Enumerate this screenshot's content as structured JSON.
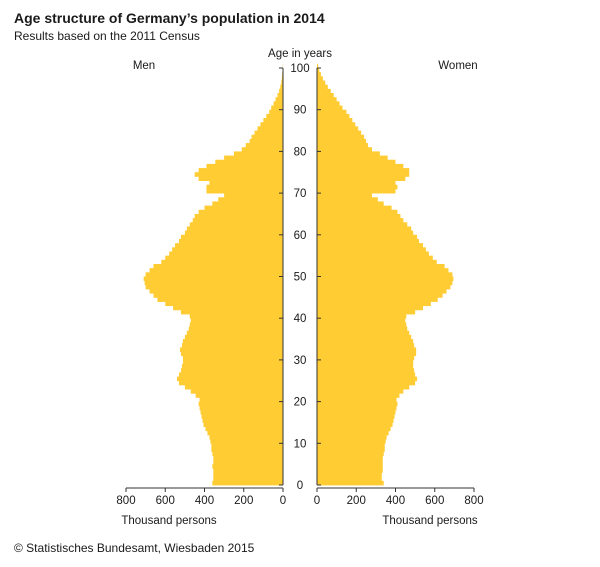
{
  "header": {
    "title": "Age structure of Germany’s population in 2014",
    "subtitle": "Results based on the 2011 Census"
  },
  "footer": {
    "source": "© Statistisches Bundesamt, Wiesbaden 2015"
  },
  "chart_data": {
    "type": "bar",
    "orientation": "horizontal-population-pyramid",
    "center_axis_label": "Age in years",
    "left_label": "Men",
    "right_label": "Women",
    "left_axis_label": "Thousand persons",
    "right_axis_label": "Thousand persons",
    "age_ticks": [
      0,
      10,
      20,
      30,
      40,
      50,
      60,
      70,
      80,
      90,
      100
    ],
    "value_ticks": [
      800,
      600,
      400,
      200,
      0
    ],
    "value_ticks_right": [
      0,
      200,
      400,
      600,
      800
    ],
    "xlim": [
      0,
      800
    ],
    "ylim": [
      0,
      100
    ],
    "grid": false,
    "bar_color": "#FFCC33",
    "ages": [
      0,
      1,
      2,
      3,
      4,
      5,
      6,
      7,
      8,
      9,
      10,
      11,
      12,
      13,
      14,
      15,
      16,
      17,
      18,
      19,
      20,
      21,
      22,
      23,
      24,
      25,
      26,
      27,
      28,
      29,
      30,
      31,
      32,
      33,
      34,
      35,
      36,
      37,
      38,
      39,
      40,
      41,
      42,
      43,
      44,
      45,
      46,
      47,
      48,
      49,
      50,
      51,
      52,
      53,
      54,
      55,
      56,
      57,
      58,
      59,
      60,
      61,
      62,
      63,
      64,
      65,
      66,
      67,
      68,
      69,
      70,
      71,
      72,
      73,
      74,
      75,
      76,
      77,
      78,
      79,
      80,
      81,
      82,
      83,
      84,
      85,
      86,
      87,
      88,
      89,
      90,
      91,
      92,
      93,
      94,
      95,
      96,
      97,
      98,
      99,
      100
    ],
    "series": [
      {
        "name": "Men",
        "values": [
          360,
          355,
          355,
          355,
          360,
          355,
          355,
          360,
          365,
          365,
          370,
          375,
          385,
          395,
          405,
          410,
          415,
          420,
          425,
          430,
          425,
          445,
          470,
          500,
          530,
          540,
          530,
          520,
          515,
          510,
          510,
          520,
          525,
          515,
          510,
          500,
          490,
          480,
          475,
          470,
          475,
          520,
          560,
          600,
          640,
          660,
          680,
          700,
          705,
          710,
          700,
          680,
          660,
          620,
          600,
          580,
          565,
          550,
          530,
          520,
          500,
          490,
          475,
          460,
          450,
          430,
          400,
          360,
          330,
          300,
          390,
          390,
          375,
          430,
          450,
          430,
          390,
          345,
          300,
          250,
          210,
          190,
          170,
          160,
          145,
          130,
          115,
          100,
          85,
          70,
          60,
          48,
          38,
          28,
          20,
          14,
          9,
          6,
          4,
          2,
          1
        ]
      },
      {
        "name": "Women",
        "values": [
          340,
          330,
          330,
          335,
          335,
          335,
          335,
          340,
          345,
          345,
          350,
          355,
          365,
          375,
          385,
          390,
          395,
          400,
          405,
          410,
          405,
          420,
          440,
          470,
          500,
          510,
          500,
          495,
          490,
          490,
          495,
          505,
          505,
          495,
          490,
          480,
          470,
          460,
          455,
          450,
          455,
          500,
          540,
          580,
          615,
          640,
          660,
          680,
          690,
          695,
          690,
          670,
          650,
          610,
          590,
          570,
          555,
          540,
          520,
          510,
          490,
          480,
          460,
          440,
          425,
          410,
          380,
          340,
          310,
          280,
          400,
          410,
          400,
          450,
          470,
          470,
          440,
          400,
          360,
          320,
          280,
          260,
          250,
          240,
          225,
          210,
          195,
          180,
          165,
          150,
          130,
          115,
          100,
          85,
          70,
          55,
          42,
          30,
          20,
          12,
          6
        ]
      }
    ]
  }
}
